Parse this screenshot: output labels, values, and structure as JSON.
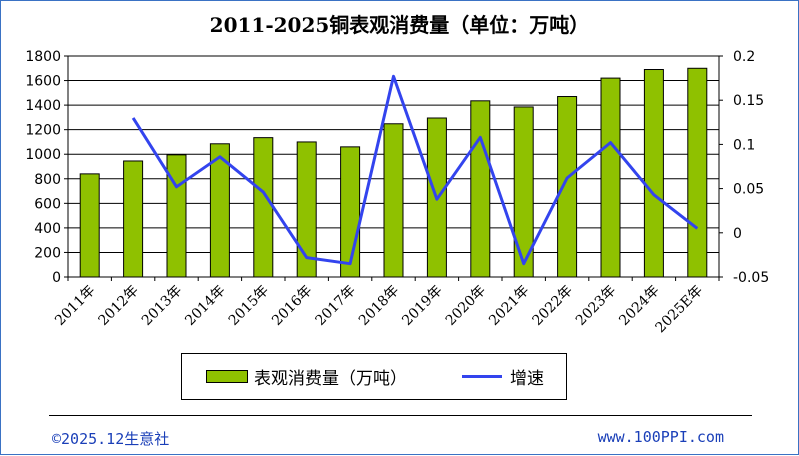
{
  "chart_data": {
    "type": "bar",
    "title": "2011-2025铜表观消费量（单位：万吨）",
    "categories": [
      "2011年",
      "2012年",
      "2013年",
      "2014年",
      "2015年",
      "2016年",
      "2017年",
      "2018年",
      "2019年",
      "2020年",
      "2021年",
      "2022年",
      "2023年",
      "2024年",
      "2025E年"
    ],
    "series": [
      {
        "name": "表观消费量（万吨）",
        "type": "bar",
        "axis": "left",
        "color": "#8fc100",
        "values": [
          840,
          945,
          995,
          1085,
          1135,
          1100,
          1060,
          1248,
          1295,
          1435,
          1385,
          1470,
          1620,
          1690,
          1700
        ]
      },
      {
        "name": "增速",
        "type": "line",
        "axis": "right",
        "color": "#3344ee",
        "values": [
          null,
          0.13,
          0.052,
          0.086,
          0.046,
          -0.028,
          -0.035,
          0.177,
          0.038,
          0.108,
          -0.035,
          0.062,
          0.102,
          0.043,
          0.005
        ]
      }
    ],
    "y_left": {
      "min": 0,
      "max": 1800,
      "step": 200,
      "tick_labels": [
        "0",
        "200",
        "400",
        "600",
        "800",
        "1000",
        "1200",
        "1400",
        "1600",
        "1800"
      ]
    },
    "y_right": {
      "min": -0.05,
      "max": 0.2,
      "step": 0.05,
      "tick_labels": [
        "-0.05",
        "0",
        "0.05",
        "0.1",
        "0.15",
        "0.2"
      ]
    },
    "grid": true,
    "legend_position": "bottom"
  },
  "footer": {
    "left": "©2025.12生意社",
    "right": "www.100PPI.com"
  }
}
